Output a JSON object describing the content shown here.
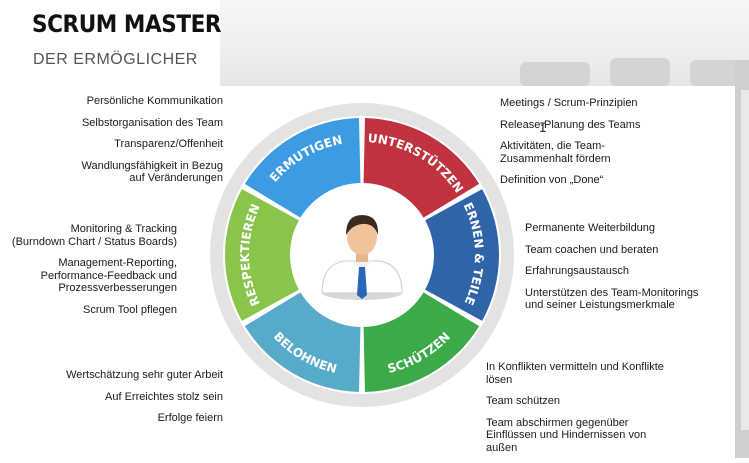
{
  "header": {
    "title": "SCRUM MASTER",
    "subtitle": "DER ERMÖGLICHER"
  },
  "segments": [
    {
      "key": "ermutigen",
      "label": "ERMUTIGEN",
      "color": "#3d9be4"
    },
    {
      "key": "unterstuetzen",
      "label": "UNTERSTÜTZEN",
      "color": "#c0323d"
    },
    {
      "key": "lernen",
      "label": "LERNEN & TEILEN",
      "color": "#2f64a9"
    },
    {
      "key": "schuetzen",
      "label": "SCHÜTZEN",
      "color": "#3caa49"
    },
    {
      "key": "belohnen",
      "label": "BELOHNEN",
      "color": "#58aac9"
    },
    {
      "key": "respektieren",
      "label": "RESPEKTIEREN",
      "color": "#89c54a"
    }
  ],
  "texts": {
    "ermutigen": [
      "Persönliche Kommunikation",
      "Selbstorganisation des Team",
      "Transparenz/Offenheit",
      "Wandlungsfähigkeit in Bezug\nauf Veränderungen"
    ],
    "respektieren": [
      "Monitoring & Tracking\n(Burndown Chart / Status Boards)",
      "Management-Reporting,\nPerformance-Feedback und\nProzessverbesserungen",
      "Scrum Tool pflegen"
    ],
    "belohnen": [
      "Wertschätzung sehr guter Arbeit",
      "Auf Erreichtes stolz sein",
      "Erfolge feiern"
    ],
    "unterstuetzen": [
      "Meetings / Scrum-Prinzipien",
      "Release-Planung des Teams",
      "Aktivitäten, die Team-\nZusammenhalt fördern",
      "Definition von „Done“"
    ],
    "lernen": [
      "Permanente Weiterbildung",
      "Team coachen und beraten",
      "Erfahrungsaustausch",
      "Unterstützen des Team-Monitorings\nund seiner Leistungsmerkmale"
    ],
    "schuetzen": [
      "In Konflikten vermitteln und Konflikte\nlösen",
      "Team schützen",
      "Team abschirmen gegenüber\nEinflüssen und Hindernissen von\naußen"
    ]
  },
  "colors": {
    "ring": "#e3e3e3",
    "center": "#ffffff"
  },
  "icons": {
    "center": "businessman-avatar-icon",
    "cursor": "text-cursor-icon"
  }
}
